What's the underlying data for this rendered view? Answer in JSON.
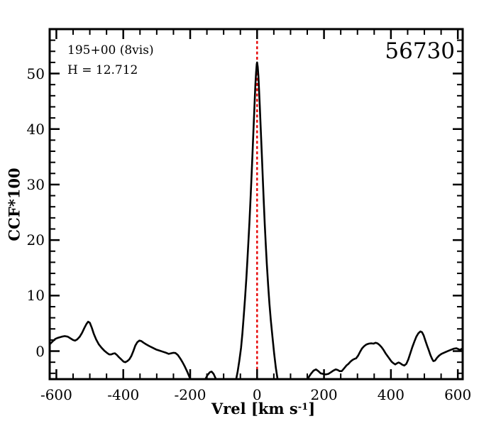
{
  "annotations": {
    "field": "195+00 (8vis)",
    "hmag": "H = 12.712",
    "mjd": "56730"
  },
  "axes": {
    "ylabel": "CCF*100",
    "xlabel_prefix": "Vrel [km s",
    "xlabel_sup": "-1",
    "xlabel_suffix": "]"
  },
  "colors": {
    "curve": "#000000",
    "frame": "#000000",
    "ref_line": "#e60000",
    "background": "#ffffff"
  },
  "chart_data": {
    "type": "line",
    "title": "56730",
    "xlabel": "Vrel [km s^-1]",
    "ylabel": "CCF*100",
    "xlim": [
      -620,
      614.5
    ],
    "ylim": [
      -5.05,
      58.0
    ],
    "x_major_ticks": [
      -600,
      -400,
      -200,
      0,
      200,
      400,
      600
    ],
    "x_minor_step": 50,
    "y_major_ticks": [
      0,
      10,
      20,
      30,
      40,
      50
    ],
    "y_minor_step": 2,
    "grid": false,
    "legend": "none",
    "ref_line_x": 0,
    "series": [
      {
        "name": "CCF",
        "points": [
          [
            -620,
            1.2
          ],
          [
            -612,
            1.7
          ],
          [
            -603,
            2.2
          ],
          [
            -595,
            2.4
          ],
          [
            -584,
            2.6
          ],
          [
            -575,
            2.7
          ],
          [
            -566,
            2.6
          ],
          [
            -558,
            2.3
          ],
          [
            -550,
            2.0
          ],
          [
            -544,
            1.9
          ],
          [
            -538,
            2.1
          ],
          [
            -530,
            2.6
          ],
          [
            -523,
            3.3
          ],
          [
            -516,
            4.2
          ],
          [
            -510,
            4.9
          ],
          [
            -505,
            5.3
          ],
          [
            -500,
            5.1
          ],
          [
            -494,
            4.2
          ],
          [
            -488,
            3.1
          ],
          [
            -481,
            2.1
          ],
          [
            -473,
            1.2
          ],
          [
            -465,
            0.6
          ],
          [
            -457,
            0.1
          ],
          [
            -449,
            -0.3
          ],
          [
            -442,
            -0.6
          ],
          [
            -436,
            -0.6
          ],
          [
            -430,
            -0.45
          ],
          [
            -425,
            -0.4
          ],
          [
            -419,
            -0.7
          ],
          [
            -413,
            -1.1
          ],
          [
            -406,
            -1.5
          ],
          [
            -399,
            -1.9
          ],
          [
            -394,
            -2.0
          ],
          [
            -388,
            -1.8
          ],
          [
            -382,
            -1.5
          ],
          [
            -376,
            -0.9
          ],
          [
            -370,
            0.0
          ],
          [
            -364,
            1.0
          ],
          [
            -358,
            1.6
          ],
          [
            -352,
            1.9
          ],
          [
            -346,
            1.8
          ],
          [
            -339,
            1.5
          ],
          [
            -331,
            1.2
          ],
          [
            -322,
            0.9
          ],
          [
            -312,
            0.6
          ],
          [
            -302,
            0.3
          ],
          [
            -292,
            0.1
          ],
          [
            -282,
            -0.1
          ],
          [
            -272,
            -0.3
          ],
          [
            -264,
            -0.5
          ],
          [
            -257,
            -0.4
          ],
          [
            -250,
            -0.3
          ],
          [
            -244,
            -0.35
          ],
          [
            -237,
            -0.7
          ],
          [
            -230,
            -1.3
          ],
          [
            -223,
            -2.0
          ],
          [
            -216,
            -2.8
          ],
          [
            -209,
            -3.7
          ],
          [
            -202,
            -4.7
          ],
          [
            -196,
            -5.6
          ],
          [
            -189,
            -6.6
          ],
          [
            -180,
            -7.4
          ],
          [
            -171,
            -7.2
          ],
          [
            -163,
            -6.2
          ],
          [
            -155,
            -5.1
          ],
          [
            -148,
            -4.3
          ],
          [
            -141,
            -3.8
          ],
          [
            -136,
            -3.7
          ],
          [
            -130,
            -4.1
          ],
          [
            -124,
            -4.9
          ],
          [
            -118,
            -5.8
          ],
          [
            -112,
            -6.8
          ],
          [
            -104,
            -8.0
          ],
          [
            -95,
            -9.0
          ],
          [
            -85,
            -9.4
          ],
          [
            -76,
            -8.6
          ],
          [
            -69,
            -7.0
          ],
          [
            -63,
            -5.2
          ],
          [
            -58,
            -3.6
          ],
          [
            -53,
            -1.7
          ],
          [
            -48,
            0.6
          ],
          [
            -44,
            3.2
          ],
          [
            -40,
            6.2
          ],
          [
            -36,
            9.5
          ],
          [
            -32,
            13.2
          ],
          [
            -29,
            16.3
          ],
          [
            -26,
            19.6
          ],
          [
            -23,
            23.2
          ],
          [
            -20,
            27.0
          ],
          [
            -17,
            31.0
          ],
          [
            -14,
            35.2
          ],
          [
            -11,
            39.6
          ],
          [
            -9,
            42.6
          ],
          [
            -7,
            45.4
          ],
          [
            -5,
            48.0
          ],
          [
            -3,
            50.2
          ],
          [
            -1,
            51.7
          ],
          [
            0,
            52.0
          ],
          [
            2,
            51.2
          ],
          [
            4,
            49.4
          ],
          [
            6,
            46.9
          ],
          [
            8,
            44.1
          ],
          [
            11,
            39.8
          ],
          [
            14,
            35.6
          ],
          [
            17,
            31.2
          ],
          [
            20,
            26.9
          ],
          [
            23,
            22.8
          ],
          [
            26,
            19.0
          ],
          [
            29,
            15.7
          ],
          [
            33,
            11.8
          ],
          [
            37,
            8.5
          ],
          [
            41,
            5.6
          ],
          [
            46,
            2.5
          ],
          [
            51,
            -0.4
          ],
          [
            56,
            -3.0
          ],
          [
            61,
            -5.0
          ],
          [
            66,
            -6.8
          ],
          [
            73,
            -8.6
          ],
          [
            82,
            -10.0
          ],
          [
            95,
            -11.0
          ],
          [
            110,
            -11.0
          ],
          [
            125,
            -10.0
          ],
          [
            138,
            -8.0
          ],
          [
            148,
            -5.6
          ],
          [
            155,
            -4.6
          ],
          [
            162,
            -4.0
          ],
          [
            169,
            -3.5
          ],
          [
            176,
            -3.3
          ],
          [
            183,
            -3.6
          ],
          [
            190,
            -4.0
          ],
          [
            197,
            -4.1
          ],
          [
            205,
            -4.2
          ],
          [
            213,
            -4.1
          ],
          [
            221,
            -3.8
          ],
          [
            228,
            -3.5
          ],
          [
            235,
            -3.3
          ],
          [
            241,
            -3.4
          ],
          [
            247,
            -3.6
          ],
          [
            253,
            -3.6
          ],
          [
            260,
            -3.1
          ],
          [
            267,
            -2.6
          ],
          [
            273,
            -2.3
          ],
          [
            279,
            -1.9
          ],
          [
            285,
            -1.6
          ],
          [
            291,
            -1.4
          ],
          [
            296,
            -1.3
          ],
          [
            302,
            -0.8
          ],
          [
            308,
            -0.1
          ],
          [
            314,
            0.5
          ],
          [
            320,
            0.9
          ],
          [
            327,
            1.2
          ],
          [
            334,
            1.35
          ],
          [
            341,
            1.4
          ],
          [
            348,
            1.35
          ],
          [
            354,
            1.5
          ],
          [
            360,
            1.4
          ],
          [
            366,
            1.1
          ],
          [
            372,
            0.7
          ],
          [
            378,
            0.2
          ],
          [
            384,
            -0.4
          ],
          [
            390,
            -0.9
          ],
          [
            396,
            -1.4
          ],
          [
            402,
            -1.9
          ],
          [
            408,
            -2.2
          ],
          [
            413,
            -2.4
          ],
          [
            418,
            -2.2
          ],
          [
            423,
            -2.05
          ],
          [
            428,
            -2.2
          ],
          [
            434,
            -2.45
          ],
          [
            440,
            -2.6
          ],
          [
            446,
            -2.3
          ],
          [
            452,
            -1.5
          ],
          [
            458,
            -0.4
          ],
          [
            464,
            0.7
          ],
          [
            470,
            1.7
          ],
          [
            476,
            2.6
          ],
          [
            482,
            3.2
          ],
          [
            488,
            3.55
          ],
          [
            493,
            3.4
          ],
          [
            498,
            2.8
          ],
          [
            503,
            1.9
          ],
          [
            508,
            1.0
          ],
          [
            513,
            0.2
          ],
          [
            518,
            -0.7
          ],
          [
            523,
            -1.4
          ],
          [
            527,
            -1.8
          ],
          [
            532,
            -1.7
          ],
          [
            538,
            -1.2
          ],
          [
            544,
            -0.8
          ],
          [
            551,
            -0.5
          ],
          [
            558,
            -0.3
          ],
          [
            566,
            -0.1
          ],
          [
            574,
            0.1
          ],
          [
            582,
            0.3
          ],
          [
            589,
            0.45
          ],
          [
            596,
            0.5
          ],
          [
            602,
            0.35
          ],
          [
            607,
            0.2
          ],
          [
            611,
            0.4
          ],
          [
            614,
            0.35
          ]
        ]
      }
    ]
  }
}
